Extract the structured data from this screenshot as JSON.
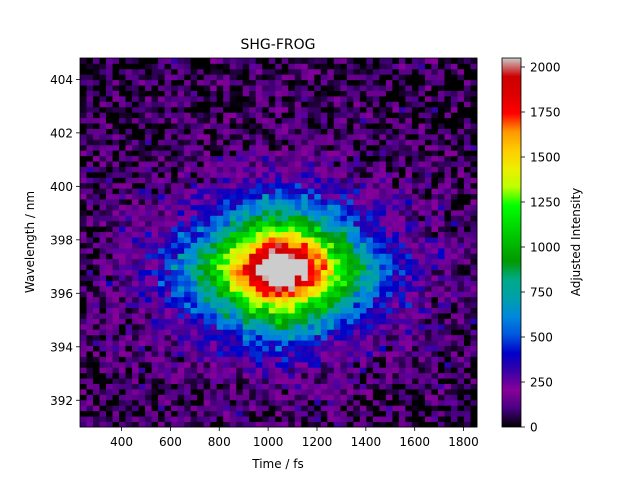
{
  "chart_data": {
    "type": "heatmap",
    "title": "SHG-FROG",
    "xlabel": "Time / fs",
    "ylabel": "Wavelength / nm",
    "colorbar_label": "Adjusted Intensity",
    "colormap": "nipy_spectral",
    "xlim": [
      230,
      1855
    ],
    "ylim": [
      391.0,
      404.8
    ],
    "x_ticks": [
      400,
      600,
      800,
      1000,
      1200,
      1400,
      1600,
      1800
    ],
    "y_ticks": [
      392,
      394,
      396,
      398,
      400,
      402,
      404
    ],
    "colorbar_range": [
      0,
      2050
    ],
    "colorbar_ticks": [
      0,
      250,
      500,
      750,
      1000,
      1250,
      1500,
      1750,
      2000
    ],
    "grid": false,
    "trace_peak": {
      "time_fs": 1050,
      "wavelength_nm": 396.9,
      "intensity": 2000
    },
    "trace_extent": {
      "time_fs": [
        500,
        1560
      ],
      "wavelength_nm": [
        393.5,
        400.2
      ]
    }
  }
}
